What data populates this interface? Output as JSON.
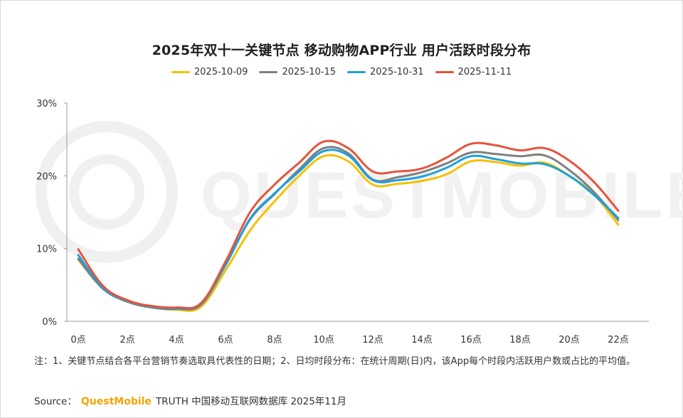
{
  "title": "2025年双十一关键节点 移动购物APP行业 用户活跃时段分布",
  "note": "注：1、关键节点结合各平台营销节奏选取具代表性的日期；2、日均时段分布：在统计周期(日)内，该App每个时段内活跃用户数或占比的平均值。",
  "source": {
    "label": "Source：",
    "brand": "QuestMobile",
    "rest": "TRUTH 中国移动互联网数据库 2025年11月"
  },
  "watermark": "QUESTMOBILE",
  "colors": {
    "series1": "#f5c000",
    "series2": "#808080",
    "series3": "#1ea0dc",
    "series4": "#e8523a",
    "axis": "#999999",
    "watermark": "#efefef"
  },
  "chart_data": {
    "type": "line",
    "x": [
      0,
      1,
      2,
      3,
      4,
      5,
      6,
      7,
      8,
      9,
      10,
      11,
      12,
      13,
      14,
      15,
      16,
      17,
      18,
      19,
      20,
      21,
      22,
      23
    ],
    "x_tick_labels": [
      "0点",
      "2点",
      "4点",
      "6点",
      "8点",
      "10点",
      "12点",
      "14点",
      "16点",
      "18点",
      "20点",
      "22点"
    ],
    "y_tick_labels": [
      "0%",
      "10%",
      "20%",
      "30%"
    ],
    "ylim": [
      0,
      30
    ],
    "xlim": [
      0,
      23
    ],
    "grid": false,
    "legend_position": "top",
    "series": [
      {
        "name": "2025-10-09",
        "values": [
          8.5,
          4.5,
          2.7,
          1.9,
          1.6,
          2.0,
          7.0,
          12.5,
          16.5,
          20.0,
          22.7,
          22.0,
          18.8,
          18.9,
          19.3,
          20.2,
          22.0,
          21.9,
          21.4,
          21.8,
          20.0,
          17.5,
          13.3,
          null
        ]
      },
      {
        "name": "2025-10-15",
        "values": [
          8.6,
          4.5,
          2.7,
          1.9,
          1.7,
          2.3,
          7.8,
          14.0,
          17.5,
          20.9,
          23.8,
          23.1,
          19.5,
          19.8,
          20.5,
          21.7,
          23.2,
          23.0,
          22.7,
          22.8,
          20.8,
          17.8,
          13.9,
          null
        ]
      },
      {
        "name": "2025-10-31",
        "values": [
          9.1,
          4.6,
          2.8,
          2.0,
          1.8,
          2.4,
          7.7,
          14.1,
          17.6,
          20.6,
          23.4,
          22.8,
          19.4,
          19.4,
          19.9,
          21.1,
          22.7,
          22.3,
          21.7,
          21.6,
          20.0,
          17.4,
          14.2,
          null
        ]
      },
      {
        "name": "2025-11-11",
        "values": [
          9.9,
          4.9,
          2.9,
          2.1,
          1.9,
          2.5,
          8.2,
          15.0,
          18.8,
          21.8,
          24.7,
          23.8,
          20.6,
          20.6,
          21.0,
          22.5,
          24.4,
          24.2,
          23.5,
          23.8,
          22.1,
          19.2,
          15.2,
          null
        ]
      }
    ]
  }
}
